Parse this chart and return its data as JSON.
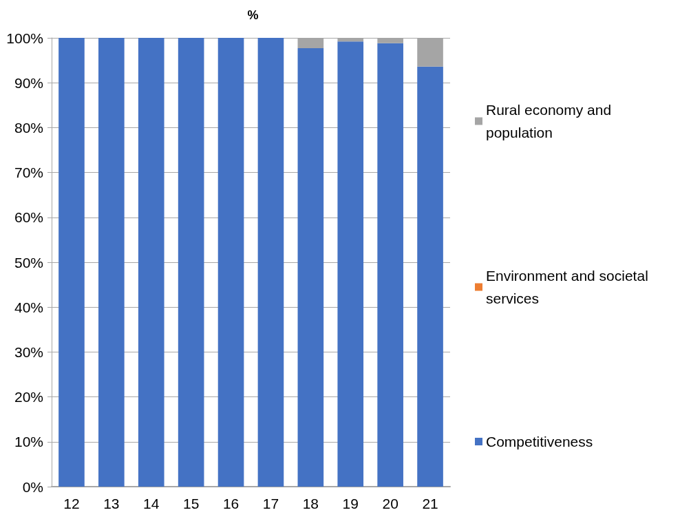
{
  "chart_data": {
    "type": "bar",
    "title": "%",
    "stacked": true,
    "categories": [
      "12",
      "13",
      "14",
      "15",
      "16",
      "17",
      "18",
      "19",
      "20",
      "21"
    ],
    "series": [
      {
        "name": "Competitiveness",
        "color": "#4472c4",
        "values": [
          100,
          100,
          100,
          100,
          100,
          100,
          97.7,
          99.2,
          98.8,
          93.6
        ]
      },
      {
        "name": "Environment and societal services",
        "color": "#ed7d31",
        "values": [
          0,
          0,
          0,
          0,
          0,
          0,
          0,
          0,
          0,
          0
        ]
      },
      {
        "name": "Rural economy and population",
        "color": "#a5a5a5",
        "values": [
          0,
          0,
          0,
          0,
          0,
          0,
          2.3,
          0.8,
          1.2,
          6.4
        ]
      }
    ],
    "ylim": [
      0,
      100
    ],
    "yticks": [
      {
        "value": 0,
        "label": "0%"
      },
      {
        "value": 10,
        "label": "10%"
      },
      {
        "value": 20,
        "label": "20%"
      },
      {
        "value": 30,
        "label": "30%"
      },
      {
        "value": 40,
        "label": "40%"
      },
      {
        "value": 50,
        "label": "50%"
      },
      {
        "value": 60,
        "label": "60%"
      },
      {
        "value": 70,
        "label": "70%"
      },
      {
        "value": 80,
        "label": "80%"
      },
      {
        "value": 90,
        "label": "90%"
      },
      {
        "value": 100,
        "label": "100%"
      }
    ],
    "grid": "y",
    "legend": "right"
  }
}
